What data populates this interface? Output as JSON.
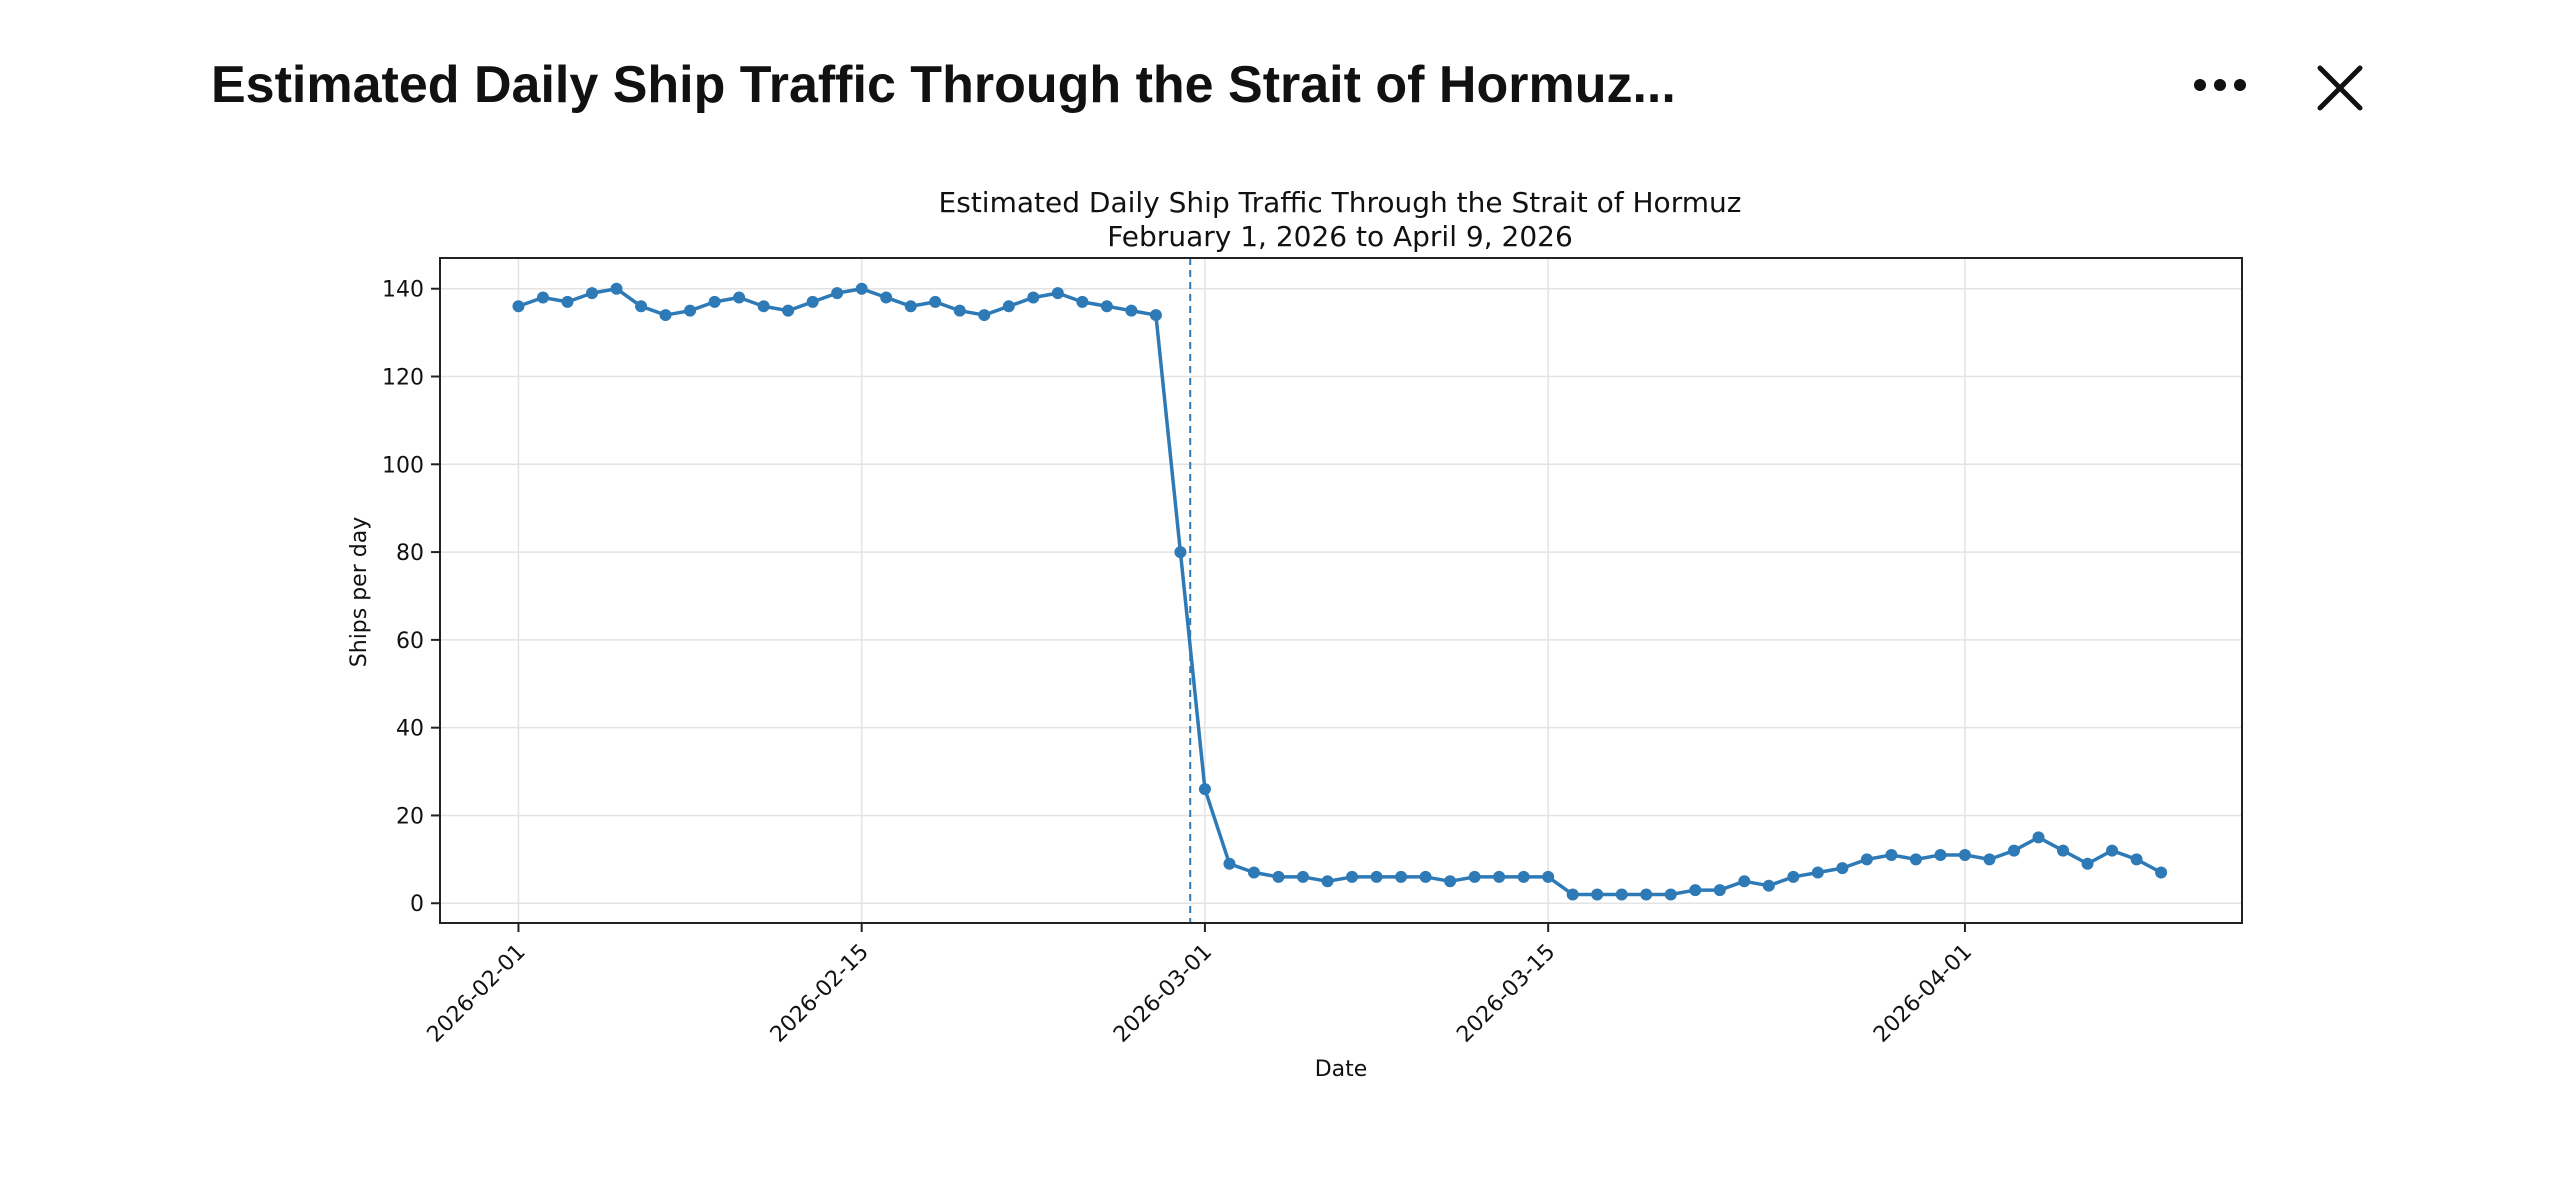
{
  "header": {
    "title": "Estimated Daily Ship Traffic Through the Strait of Hormuz...",
    "more_icon": "more-horizontal-icon",
    "close_icon": "close-icon"
  },
  "colors": {
    "series": "#2e7ab6",
    "grid": "#e3e3e3",
    "axis": "#222222",
    "text": "#111111"
  },
  "chart_data": {
    "type": "line",
    "title": "Estimated Daily Ship Traffic Through the Strait of Hormuz",
    "subtitle": "February 1, 2026 to April 9, 2026",
    "xlabel": "Date",
    "ylabel": "Ships per day",
    "ylim": [
      -4.5,
      147
    ],
    "xlim_days": [
      -3.2,
      70.3
    ],
    "yticks": [
      0,
      20,
      40,
      60,
      80,
      100,
      120,
      140
    ],
    "xticks": [
      {
        "day": 0,
        "label": "2026-02-01"
      },
      {
        "day": 14,
        "label": "2026-02-15"
      },
      {
        "day": 28,
        "label": "2026-03-01"
      },
      {
        "day": 42,
        "label": "2026-03-15"
      },
      {
        "day": 59,
        "label": "2026-04-01"
      }
    ],
    "vline_day": 27,
    "grid": true,
    "series": [
      {
        "name": "Ships per day",
        "start_date": "2026-02-01",
        "values": [
          136,
          138,
          137,
          139,
          140,
          136,
          134,
          135,
          137,
          138,
          136,
          135,
          137,
          139,
          140,
          138,
          136,
          137,
          135,
          134,
          136,
          138,
          139,
          137,
          136,
          135,
          134,
          80,
          26,
          9,
          7,
          6,
          6,
          5,
          6,
          6,
          6,
          6,
          5,
          6,
          6,
          6,
          6,
          2,
          2,
          2,
          2,
          2,
          3,
          3,
          5,
          4,
          6,
          7,
          8,
          10,
          11,
          10,
          11,
          11,
          10,
          12,
          15,
          12,
          9,
          12,
          10,
          7
        ]
      }
    ]
  }
}
